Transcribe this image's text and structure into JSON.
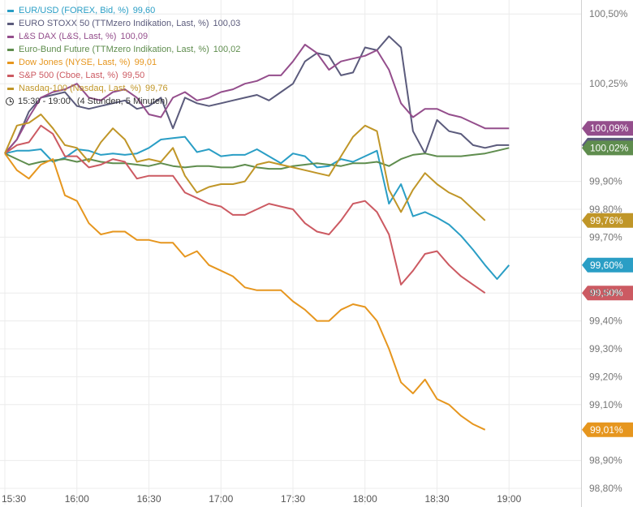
{
  "legend": [
    {
      "label": "EUR/USD (FOREX, Bid, %)",
      "value": "99,60",
      "color": "#2a9ec5"
    },
    {
      "label": "EURO STOXX 50 (TTMzero Indikation, Last, %)",
      "value": "100,03",
      "color": "#5b5b7c"
    },
    {
      "label": "L&S DAX (L&S, Last, %)",
      "value": "100,09",
      "color": "#944e8c"
    },
    {
      "label": "Euro-Bund Future (TTMzero Indikation, Last, %)",
      "value": "100,02",
      "color": "#5f8d4e"
    },
    {
      "label": "Dow Jones (NYSE, Last, %)",
      "value": "99,01",
      "color": "#e6961e"
    },
    {
      "label": "S&P 500 (Cboe, Last, %)",
      "value": "99,50",
      "color": "#cc5a62"
    },
    {
      "label": "Nasdaq-100 (Nasdaq, Last, %)",
      "value": "99,76",
      "color": "#c09628"
    }
  ],
  "time_range": {
    "range": "15:30 - 19:00",
    "duration": "(4 Stunden, 5 Minuten)"
  },
  "chart_data": {
    "type": "line",
    "x_ticks": [
      "15:30",
      "16:00",
      "16:30",
      "17:00",
      "17:30",
      "18:00",
      "18:30",
      "19:00"
    ],
    "y_ticks": [
      "100,50%",
      "100,25%",
      "99,90%",
      "99,80%",
      "99,70%",
      "99,50%",
      "99,40%",
      "99,30%",
      "99,20%",
      "99,10%",
      "98,90%",
      "98,80%"
    ],
    "x_range": [
      "15:30",
      "19:30"
    ],
    "y_range": [
      98.8,
      100.55
    ],
    "grid": true,
    "series": [
      {
        "name": "EUR/USD (FOREX, Bid, %)",
        "color": "#2a9ec5",
        "last": "99,60%",
        "x": [
          "15:30",
          "15:35",
          "15:40",
          "15:45",
          "15:50",
          "15:55",
          "16:00",
          "16:05",
          "16:10",
          "16:15",
          "16:20",
          "16:25",
          "16:30",
          "16:35",
          "16:40",
          "16:45",
          "16:50",
          "16:55",
          "17:00",
          "17:05",
          "17:10",
          "17:15",
          "17:20",
          "17:25",
          "17:30",
          "17:35",
          "17:40",
          "17:45",
          "17:50",
          "17:55",
          "18:00",
          "18:05",
          "18:10",
          "18:15",
          "18:20",
          "18:25",
          "18:30",
          "18:35",
          "18:40",
          "18:45",
          "18:50",
          "18:55",
          "19:00"
        ],
        "y": [
          100.0,
          100.01,
          100.01,
          100.015,
          99.97,
          99.985,
          100.015,
          100.01,
          99.995,
          100.0,
          99.995,
          100.0,
          100.02,
          100.05,
          100.055,
          100.06,
          100.005,
          100.015,
          99.99,
          99.995,
          99.995,
          100.015,
          99.99,
          99.965,
          100.0,
          99.99,
          99.95,
          99.955,
          99.98,
          99.97,
          99.99,
          100.01,
          99.82,
          99.89,
          99.775,
          99.79,
          99.77,
          99.745,
          99.705,
          99.655,
          99.6,
          99.55,
          99.6
        ]
      },
      {
        "name": "EURO STOXX 50 (TTMzero Indikation, Last, %)",
        "color": "#5b5b7c",
        "last": "100,03%",
        "x": [
          "15:30",
          "15:35",
          "15:40",
          "15:45",
          "15:50",
          "15:55",
          "16:00",
          "16:05",
          "16:10",
          "16:15",
          "16:20",
          "16:25",
          "16:30",
          "16:35",
          "16:40",
          "16:45",
          "16:50",
          "16:55",
          "17:00",
          "17:05",
          "17:10",
          "17:15",
          "17:20",
          "17:25",
          "17:30",
          "17:35",
          "17:40",
          "17:45",
          "17:50",
          "17:55",
          "18:00",
          "18:05",
          "18:10",
          "18:15",
          "18:20",
          "18:25",
          "18:30",
          "18:35",
          "18:40",
          "18:45",
          "18:50",
          "18:55",
          "19:00"
        ],
        "y": [
          100.0,
          100.05,
          100.15,
          100.2,
          100.21,
          100.22,
          100.17,
          100.16,
          100.17,
          100.18,
          100.19,
          100.16,
          100.17,
          100.2,
          100.09,
          100.2,
          100.18,
          100.17,
          100.18,
          100.19,
          100.2,
          100.21,
          100.19,
          100.22,
          100.25,
          100.33,
          100.36,
          100.35,
          100.28,
          100.29,
          100.38,
          100.37,
          100.42,
          100.38,
          100.08,
          100.0,
          100.12,
          100.08,
          100.07,
          100.03,
          100.02,
          100.03,
          100.03
        ]
      },
      {
        "name": "L&S DAX (L&S, Last, %)",
        "color": "#944e8c",
        "last": "100,09%",
        "x": [
          "15:30",
          "15:35",
          "15:40",
          "15:45",
          "15:50",
          "15:55",
          "16:00",
          "16:05",
          "16:10",
          "16:15",
          "16:20",
          "16:25",
          "16:30",
          "16:35",
          "16:40",
          "16:45",
          "16:50",
          "16:55",
          "17:00",
          "17:05",
          "17:10",
          "17:15",
          "17:20",
          "17:25",
          "17:30",
          "17:35",
          "17:40",
          "17:45",
          "17:50",
          "17:55",
          "18:00",
          "18:05",
          "18:10",
          "18:15",
          "18:20",
          "18:25",
          "18:30",
          "18:35",
          "18:40",
          "18:45",
          "18:50",
          "18:55",
          "19:00"
        ],
        "y": [
          100.0,
          100.05,
          100.13,
          100.2,
          100.22,
          100.23,
          100.25,
          100.2,
          100.19,
          100.22,
          100.23,
          100.2,
          100.14,
          100.13,
          100.2,
          100.22,
          100.19,
          100.2,
          100.22,
          100.23,
          100.25,
          100.26,
          100.28,
          100.28,
          100.33,
          100.39,
          100.36,
          100.3,
          100.33,
          100.34,
          100.35,
          100.37,
          100.3,
          100.18,
          100.13,
          100.16,
          100.16,
          100.14,
          100.13,
          100.11,
          100.09,
          100.09,
          100.09
        ]
      },
      {
        "name": "Euro-Bund Future (TTMzero Indikation, Last, %)",
        "color": "#5f8d4e",
        "last": "100,02%",
        "x": [
          "15:30",
          "15:35",
          "15:40",
          "15:45",
          "15:50",
          "15:55",
          "16:00",
          "16:05",
          "16:10",
          "16:15",
          "16:20",
          "16:25",
          "16:30",
          "16:35",
          "16:40",
          "16:45",
          "16:50",
          "16:55",
          "17:00",
          "17:05",
          "17:10",
          "17:15",
          "17:20",
          "17:25",
          "17:30",
          "17:35",
          "17:40",
          "17:45",
          "17:50",
          "17:55",
          "18:00",
          "18:05",
          "18:10",
          "18:15",
          "18:20",
          "18:25",
          "18:30",
          "18:35",
          "18:40",
          "18:45",
          "18:50",
          "18:55",
          "19:00"
        ],
        "y": [
          100.0,
          99.98,
          99.96,
          99.97,
          99.975,
          99.98,
          99.97,
          99.98,
          99.97,
          99.965,
          99.965,
          99.96,
          99.955,
          99.965,
          99.955,
          99.95,
          99.955,
          99.955,
          99.95,
          99.95,
          99.96,
          99.95,
          99.945,
          99.945,
          99.955,
          99.96,
          99.965,
          99.96,
          99.955,
          99.965,
          99.965,
          99.97,
          99.955,
          99.98,
          99.995,
          100.0,
          99.99,
          99.99,
          99.99,
          99.995,
          100.0,
          100.01,
          100.02
        ]
      },
      {
        "name": "Dow Jones (NYSE, Last, %)",
        "color": "#e6961e",
        "last": "99,01%",
        "x": [
          "15:30",
          "15:35",
          "15:40",
          "15:45",
          "15:50",
          "15:55",
          "16:00",
          "16:05",
          "16:10",
          "16:15",
          "16:20",
          "16:25",
          "16:30",
          "16:35",
          "16:40",
          "16:45",
          "16:50",
          "16:55",
          "17:00",
          "17:05",
          "17:10",
          "17:15",
          "17:20",
          "17:25",
          "17:30",
          "17:35",
          "17:40",
          "17:45",
          "17:50",
          "17:55",
          "18:00",
          "18:05",
          "18:10",
          "18:15",
          "18:20",
          "18:25",
          "18:30",
          "18:35",
          "18:40",
          "18:45",
          "18:50"
        ],
        "y": [
          100.0,
          99.94,
          99.91,
          99.96,
          99.98,
          99.85,
          99.83,
          99.75,
          99.71,
          99.72,
          99.72,
          99.69,
          99.69,
          99.68,
          99.68,
          99.63,
          99.65,
          99.6,
          99.58,
          99.56,
          99.52,
          99.51,
          99.51,
          99.51,
          99.47,
          99.44,
          99.4,
          99.4,
          99.44,
          99.46,
          99.45,
          99.4,
          99.3,
          99.18,
          99.14,
          99.19,
          99.12,
          99.1,
          99.06,
          99.03,
          99.01
        ]
      },
      {
        "name": "S&P 500 (Cboe, Last, %)",
        "color": "#cc5a62",
        "last": "99,50%",
        "x": [
          "15:30",
          "15:35",
          "15:40",
          "15:45",
          "15:50",
          "15:55",
          "16:00",
          "16:05",
          "16:10",
          "16:15",
          "16:20",
          "16:25",
          "16:30",
          "16:35",
          "16:40",
          "16:45",
          "16:50",
          "16:55",
          "17:00",
          "17:05",
          "17:10",
          "17:15",
          "17:20",
          "17:25",
          "17:30",
          "17:35",
          "17:40",
          "17:45",
          "17:50",
          "17:55",
          "18:00",
          "18:05",
          "18:10",
          "18:15",
          "18:20",
          "18:25",
          "18:30",
          "18:35",
          "18:40",
          "18:45",
          "18:50"
        ],
        "y": [
          100.0,
          100.03,
          100.04,
          100.1,
          100.07,
          99.99,
          99.99,
          99.95,
          99.96,
          99.98,
          99.97,
          99.91,
          99.92,
          99.92,
          99.92,
          99.86,
          99.84,
          99.82,
          99.81,
          99.78,
          99.78,
          99.8,
          99.82,
          99.81,
          99.8,
          99.75,
          99.72,
          99.71,
          99.76,
          99.82,
          99.83,
          99.79,
          99.71,
          99.53,
          99.58,
          99.64,
          99.65,
          99.6,
          99.56,
          99.53,
          99.5
        ]
      },
      {
        "name": "Nasdaq-100 (Nasdaq, Last, %)",
        "color": "#c09628",
        "last": "99,76%",
        "x": [
          "15:30",
          "15:35",
          "15:40",
          "15:45",
          "15:50",
          "15:55",
          "16:00",
          "16:05",
          "16:10",
          "16:15",
          "16:20",
          "16:25",
          "16:30",
          "16:35",
          "16:40",
          "16:45",
          "16:50",
          "16:55",
          "17:00",
          "17:05",
          "17:10",
          "17:15",
          "17:20",
          "17:25",
          "17:30",
          "17:35",
          "17:40",
          "17:45",
          "17:50",
          "17:55",
          "18:00",
          "18:05",
          "18:10",
          "18:15",
          "18:20",
          "18:25",
          "18:30",
          "18:35",
          "18:40",
          "18:45",
          "18:50"
        ],
        "y": [
          100.0,
          100.1,
          100.11,
          100.14,
          100.09,
          100.03,
          100.02,
          99.97,
          100.04,
          100.09,
          100.05,
          99.97,
          99.98,
          99.97,
          100.02,
          99.92,
          99.86,
          99.88,
          99.89,
          99.89,
          99.9,
          99.96,
          99.97,
          99.96,
          99.95,
          99.94,
          99.93,
          99.92,
          99.99,
          100.06,
          100.1,
          100.08,
          99.87,
          99.79,
          99.87,
          99.93,
          99.89,
          99.86,
          99.84,
          99.8,
          99.76
        ]
      }
    ]
  }
}
